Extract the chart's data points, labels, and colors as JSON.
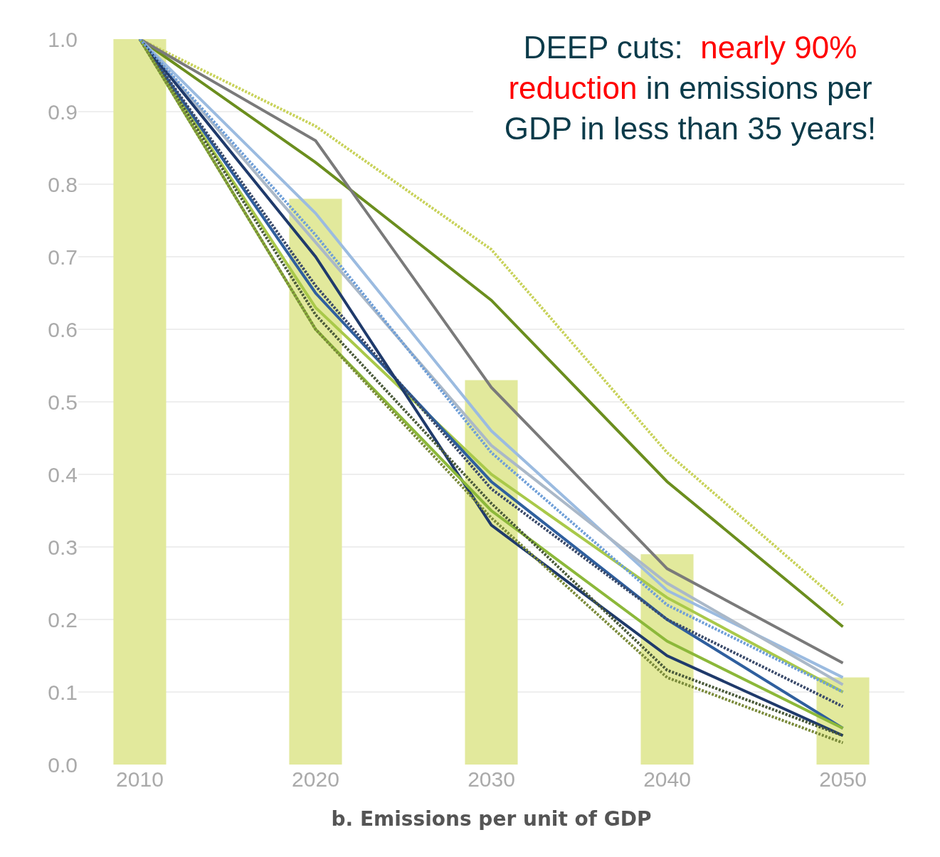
{
  "chart_data": {
    "type": "line",
    "xlabel": "b. Emissions per unit of GDP",
    "categories": [
      "2010",
      "2020",
      "2030",
      "2040",
      "2050"
    ],
    "ylim": [
      0,
      1
    ],
    "yticks": [
      {
        "value": 0,
        "label": "0.0"
      },
      {
        "value": 0.1,
        "label": "0.1"
      },
      {
        "value": 0.2,
        "label": "0.2"
      },
      {
        "value": 0.3,
        "label": "0.3"
      },
      {
        "value": 0.4,
        "label": "0.4"
      },
      {
        "value": 0.5,
        "label": "0.5"
      },
      {
        "value": 0.6,
        "label": "0.6"
      },
      {
        "value": 0.7,
        "label": "0.7"
      },
      {
        "value": 0.8,
        "label": "0.8"
      },
      {
        "value": 0.9,
        "label": "0.9"
      },
      {
        "value": 1,
        "label": "1.0"
      }
    ],
    "grid": "y",
    "annotations": [
      "DEEP cuts:",
      "nearly 90% reduction",
      "in emissions per GDP in less than 35 years!"
    ],
    "series": [
      {
        "type": "bar",
        "color": "#e2e99c",
        "values": [
          1.0,
          0.78,
          0.53,
          0.29,
          0.12
        ]
      },
      {
        "color": "#c8d25a",
        "line_style": "dotted",
        "values": [
          1.0,
          0.88,
          0.71,
          0.43,
          0.22
        ]
      },
      {
        "color": "#6b8e1e",
        "values": [
          1.0,
          0.83,
          0.64,
          0.39,
          0.19
        ]
      },
      {
        "color": "#7a7a7a",
        "values": [
          1.0,
          0.86,
          0.52,
          0.27,
          0.14
        ]
      },
      {
        "color": "#9bbbe0",
        "values": [
          1.0,
          0.76,
          0.46,
          0.24,
          0.12
        ]
      },
      {
        "color": "#aab8c8",
        "values": [
          1.0,
          0.72,
          0.44,
          0.25,
          0.11
        ]
      },
      {
        "color": "#a9c94a",
        "values": [
          1.0,
          0.63,
          0.4,
          0.23,
          0.1
        ]
      },
      {
        "color": "#2f5f9e",
        "values": [
          1.0,
          0.65,
          0.39,
          0.2,
          0.05
        ]
      },
      {
        "color": "#3a4a6a",
        "line_style": "dotted",
        "values": [
          1.0,
          0.66,
          0.38,
          0.2,
          0.08
        ]
      },
      {
        "color": "#1f3a6b",
        "values": [
          1.0,
          0.7,
          0.33,
          0.15,
          0.04
        ]
      },
      {
        "color": "#8cb83a",
        "values": [
          1.0,
          0.6,
          0.35,
          0.17,
          0.05
        ]
      },
      {
        "color": "#4a5a3a",
        "line_style": "dotted",
        "values": [
          1.0,
          0.62,
          0.36,
          0.13,
          0.04
        ]
      },
      {
        "color": "#7a8a3a",
        "line_style": "dotted",
        "values": [
          1.0,
          0.6,
          0.34,
          0.12,
          0.03
        ]
      },
      {
        "color": "#6f9fd8",
        "line_style": "dotted",
        "values": [
          1.0,
          0.73,
          0.43,
          0.22,
          0.1
        ]
      }
    ]
  }
}
